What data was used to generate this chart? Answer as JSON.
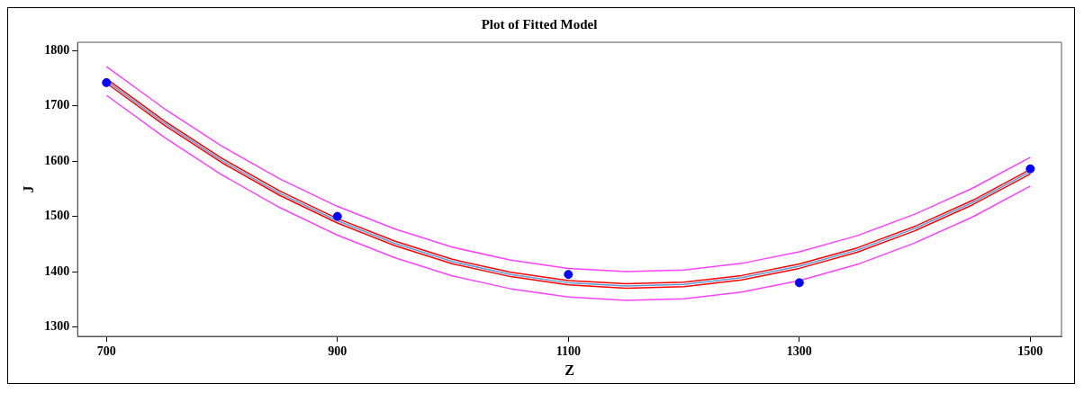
{
  "chart_data": {
    "type": "scatter",
    "title": "Plot of Fitted Model",
    "xlabel": "Z",
    "ylabel": "J",
    "xlim": [
      675,
      1527
    ],
    "xticks": [
      700,
      900,
      1100,
      1300,
      1500
    ],
    "ylim": [
      1283,
      1815
    ],
    "yticks": [
      1300,
      1400,
      1500,
      1600,
      1700,
      1800
    ],
    "grid": false,
    "legend": false,
    "series": [
      {
        "type": "line",
        "marker": "none",
        "color": "#ff40ff",
        "x": [
          700,
          750,
          800,
          850,
          900,
          950,
          1000,
          1050,
          1100,
          1150,
          1200,
          1250,
          1300,
          1350,
          1400,
          1450,
          1500
        ],
        "values": [
          1771,
          1695,
          1627,
          1568,
          1518,
          1477,
          1444,
          1421,
          1406,
          1400,
          1403,
          1415,
          1436,
          1465,
          1504,
          1551,
          1607
        ]
      },
      {
        "type": "line",
        "marker": "none",
        "color": "#ff40ff",
        "x": [
          700,
          750,
          800,
          850,
          900,
          950,
          1000,
          1050,
          1100,
          1150,
          1200,
          1250,
          1300,
          1350,
          1400,
          1450,
          1500
        ],
        "values": [
          1719,
          1643,
          1575,
          1516,
          1466,
          1425,
          1392,
          1369,
          1354,
          1348,
          1351,
          1363,
          1384,
          1413,
          1452,
          1499,
          1555
        ]
      },
      {
        "type": "line",
        "marker": "none",
        "color": "#ff0000",
        "x": [
          700,
          750,
          800,
          850,
          900,
          950,
          1000,
          1050,
          1100,
          1150,
          1200,
          1250,
          1300,
          1350,
          1400,
          1450,
          1500
        ],
        "values": [
          1749,
          1673,
          1605,
          1546,
          1496,
          1455,
          1422,
          1399,
          1384,
          1378,
          1381,
          1393,
          1414,
          1443,
          1482,
          1529,
          1585
        ]
      },
      {
        "type": "line",
        "marker": "none",
        "color": "#ff0000",
        "x": [
          700,
          750,
          800,
          850,
          900,
          950,
          1000,
          1050,
          1100,
          1150,
          1200,
          1250,
          1300,
          1350,
          1400,
          1450,
          1500
        ],
        "values": [
          1741,
          1665,
          1597,
          1538,
          1488,
          1447,
          1414,
          1391,
          1376,
          1370,
          1373,
          1385,
          1406,
          1435,
          1474,
          1521,
          1577
        ]
      },
      {
        "type": "line",
        "marker": "none",
        "color": "#5b9bd5",
        "x": [
          700,
          750,
          800,
          850,
          900,
          950,
          1000,
          1050,
          1100,
          1150,
          1200,
          1250,
          1300,
          1350,
          1400,
          1450,
          1500
        ],
        "values": [
          1745,
          1669,
          1601,
          1542,
          1492,
          1451,
          1418,
          1395,
          1380,
          1374,
          1377,
          1389,
          1410,
          1439,
          1478,
          1525,
          1581
        ]
      },
      {
        "marker": "circle",
        "color": "#0000ff",
        "x": [
          700,
          900,
          1100,
          1300,
          1500
        ],
        "values": [
          1742,
          1500,
          1395,
          1380,
          1586
        ]
      }
    ]
  }
}
